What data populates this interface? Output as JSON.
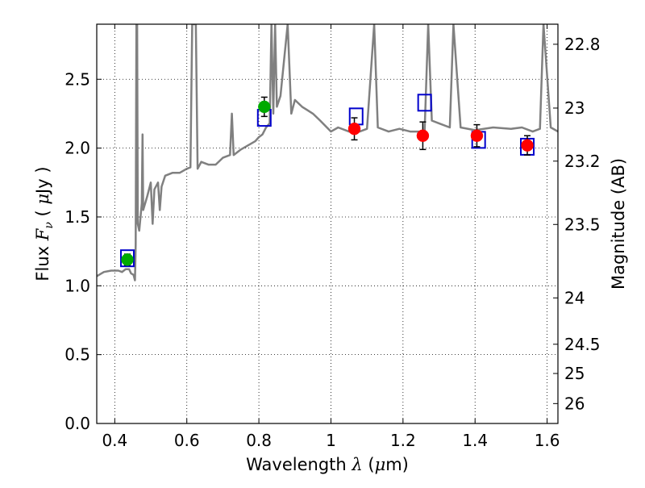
{
  "chart_data": {
    "type": "scatter",
    "title": "",
    "xlabel": {
      "prefix": "Wavelength ",
      "symbol": "λ",
      "unit_open": " (",
      "unit_mu": "μ",
      "unit_rest": "m)"
    },
    "ylabel": {
      "prefix": "Flux  ",
      "symbol": "F",
      "sub": "ν",
      "unit_open": "  ( ",
      "unit_mu": "μ",
      "unit_rest": "Jy )"
    },
    "y2label": "Magnitude (AB)",
    "xlim": [
      0.35,
      1.63
    ],
    "ylim": [
      0.0,
      2.9
    ],
    "grid": true,
    "x_ticks": [
      {
        "v": 0.4,
        "label": "0.4"
      },
      {
        "v": 0.6,
        "label": "0.6"
      },
      {
        "v": 0.8,
        "label": "0.8"
      },
      {
        "v": 1.0,
        "label": "1"
      },
      {
        "v": 1.2,
        "label": "1.2"
      },
      {
        "v": 1.4,
        "label": "1.4"
      },
      {
        "v": 1.6,
        "label": "1.6"
      }
    ],
    "y_ticks": [
      {
        "v": 0.0,
        "label": "0.0"
      },
      {
        "v": 0.5,
        "label": "0.5"
      },
      {
        "v": 1.0,
        "label": "1.0"
      },
      {
        "v": 1.5,
        "label": "1.5"
      },
      {
        "v": 2.0,
        "label": "2.0"
      },
      {
        "v": 2.5,
        "label": "2.5"
      }
    ],
    "y2_ticks": [
      {
        "mag": 22.8,
        "label": "22.8"
      },
      {
        "mag": 23.0,
        "label": "23"
      },
      {
        "mag": 23.2,
        "label": "23.2"
      },
      {
        "mag": 23.5,
        "label": "23.5"
      },
      {
        "mag": 24.0,
        "label": "24"
      },
      {
        "mag": 24.5,
        "label": "24.5"
      },
      {
        "mag": 25.0,
        "label": "25"
      },
      {
        "mag": 26.0,
        "label": "26"
      }
    ],
    "spectrum": {
      "color": "#808080",
      "points": [
        [
          0.35,
          1.07
        ],
        [
          0.37,
          1.1
        ],
        [
          0.39,
          1.11
        ],
        [
          0.41,
          1.11
        ],
        [
          0.42,
          1.1
        ],
        [
          0.43,
          1.12
        ],
        [
          0.44,
          1.12
        ],
        [
          0.445,
          1.09
        ],
        [
          0.452,
          1.08
        ],
        [
          0.456,
          1.04
        ],
        [
          0.458,
          1.3
        ],
        [
          0.46,
          2.9
        ],
        [
          0.462,
          2.9
        ],
        [
          0.464,
          1.45
        ],
        [
          0.468,
          1.4
        ],
        [
          0.475,
          1.6
        ],
        [
          0.477,
          2.1
        ],
        [
          0.479,
          1.55
        ],
        [
          0.49,
          1.65
        ],
        [
          0.5,
          1.75
        ],
        [
          0.505,
          1.45
        ],
        [
          0.51,
          1.7
        ],
        [
          0.52,
          1.75
        ],
        [
          0.525,
          1.55
        ],
        [
          0.53,
          1.72
        ],
        [
          0.54,
          1.8
        ],
        [
          0.56,
          1.82
        ],
        [
          0.58,
          1.82
        ],
        [
          0.6,
          1.85
        ],
        [
          0.61,
          1.86
        ],
        [
          0.615,
          2.9
        ],
        [
          0.625,
          2.9
        ],
        [
          0.63,
          1.85
        ],
        [
          0.64,
          1.9
        ],
        [
          0.66,
          1.88
        ],
        [
          0.68,
          1.88
        ],
        [
          0.7,
          1.93
        ],
        [
          0.72,
          1.95
        ],
        [
          0.725,
          2.25
        ],
        [
          0.73,
          1.95
        ],
        [
          0.75,
          1.99
        ],
        [
          0.77,
          2.02
        ],
        [
          0.79,
          2.05
        ],
        [
          0.8,
          2.08
        ],
        [
          0.81,
          2.1
        ],
        [
          0.82,
          2.15
        ],
        [
          0.83,
          2.18
        ],
        [
          0.835,
          2.9
        ],
        [
          0.84,
          2.25
        ],
        [
          0.845,
          2.9
        ],
        [
          0.85,
          2.3
        ],
        [
          0.86,
          2.38
        ],
        [
          0.88,
          2.9
        ],
        [
          0.89,
          2.25
        ],
        [
          0.9,
          2.35
        ],
        [
          0.92,
          2.3
        ],
        [
          0.95,
          2.25
        ],
        [
          0.97,
          2.2
        ],
        [
          1.0,
          2.12
        ],
        [
          1.02,
          2.15
        ],
        [
          1.05,
          2.12
        ],
        [
          1.08,
          2.12
        ],
        [
          1.1,
          2.14
        ],
        [
          1.12,
          2.9
        ],
        [
          1.13,
          2.15
        ],
        [
          1.16,
          2.12
        ],
        [
          1.19,
          2.14
        ],
        [
          1.22,
          2.12
        ],
        [
          1.25,
          2.12
        ],
        [
          1.26,
          2.13
        ],
        [
          1.27,
          2.9
        ],
        [
          1.28,
          2.2
        ],
        [
          1.3,
          2.18
        ],
        [
          1.33,
          2.15
        ],
        [
          1.34,
          2.9
        ],
        [
          1.36,
          2.15
        ],
        [
          1.4,
          2.13
        ],
        [
          1.45,
          2.15
        ],
        [
          1.5,
          2.14
        ],
        [
          1.53,
          2.15
        ],
        [
          1.56,
          2.12
        ],
        [
          1.58,
          2.14
        ],
        [
          1.59,
          2.9
        ],
        [
          1.61,
          2.15
        ],
        [
          1.63,
          2.12
        ]
      ]
    },
    "series": [
      {
        "marker": "square-open",
        "color": "#0000cc",
        "points": [
          {
            "x": 0.435,
            "y": 1.2
          },
          {
            "x": 0.815,
            "y": 2.22
          },
          {
            "x": 1.07,
            "y": 2.23
          },
          {
            "x": 1.26,
            "y": 2.33
          },
          {
            "x": 1.41,
            "y": 2.06
          },
          {
            "x": 1.545,
            "y": 2.01
          }
        ]
      },
      {
        "marker": "circle",
        "color": "#00aa00",
        "points": [
          {
            "x": 0.435,
            "y": 1.19,
            "err": 0.04
          },
          {
            "x": 0.815,
            "y": 2.3,
            "err": 0.07
          }
        ]
      },
      {
        "marker": "circle",
        "color": "#ff0000",
        "points": [
          {
            "x": 1.065,
            "y": 2.14,
            "err": 0.08
          },
          {
            "x": 1.255,
            "y": 2.09,
            "err": 0.1
          },
          {
            "x": 1.405,
            "y": 2.09,
            "err": 0.08
          },
          {
            "x": 1.545,
            "y": 2.02,
            "err": 0.07
          }
        ]
      }
    ]
  }
}
